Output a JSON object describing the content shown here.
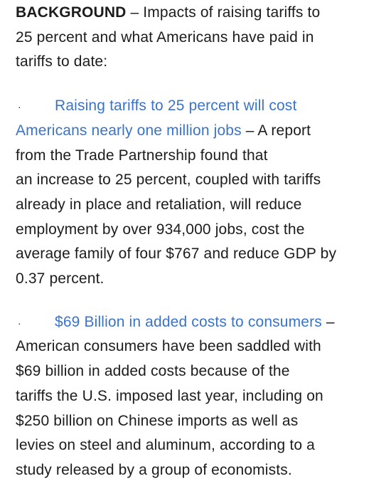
{
  "intro": {
    "heading": "BACKGROUND",
    "text_lines": [
      " – Impacts of raising tariffs to",
      "25 percent and what Americans have paid in",
      "tariffs to date:"
    ]
  },
  "bullets": [
    {
      "marker": "·",
      "link_lines": [
        "Raising tariffs to 25 percent will cost",
        "Americans nearly one million jobs"
      ],
      "after_link": " – A report",
      "body_lines": [
        "from the Trade Partnership found that",
        "an increase to 25 percent, coupled with tariffs",
        "already in place and retaliation, will reduce",
        "employment by over 934,000 jobs, cost the",
        "average family of four $767 and reduce GDP by",
        "0.37 percent."
      ]
    },
    {
      "marker": "·",
      "link_lines": [
        "$69 Billion in added costs to consumers"
      ],
      "after_link": " –",
      "body_lines": [
        "American consumers have been saddled with",
        "$69 billion in added costs because of the",
        "tariffs the U.S. imposed last year, including on",
        "$250 billion on Chinese imports as well as",
        "levies on steel and aluminum, according to a",
        "study released by a group of economists."
      ]
    }
  ],
  "colors": {
    "text": "#1c1c1e",
    "link": "#3a74c9",
    "background": "#ffffff"
  }
}
